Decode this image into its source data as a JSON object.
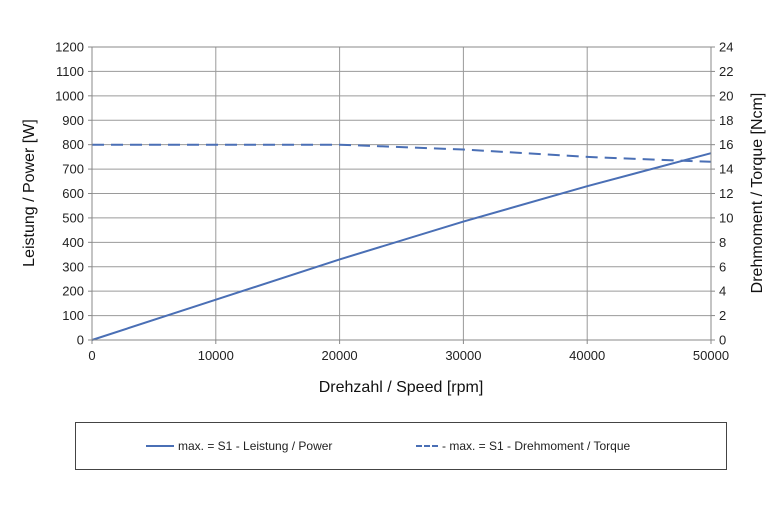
{
  "chart_data": {
    "type": "line",
    "xlabel": "Drehzahl / Speed [rpm]",
    "ylabel_left": "Leistung / Power [W]",
    "ylabel_right": "Drehmoment / Torque [Ncm]",
    "xlim": [
      0,
      50000
    ],
    "ylim_left": [
      0,
      1200
    ],
    "ylim_right": [
      0,
      24
    ],
    "x_ticks": [
      0,
      10000,
      20000,
      30000,
      40000,
      50000
    ],
    "y_left_ticks": [
      0,
      100,
      200,
      300,
      400,
      500,
      600,
      700,
      800,
      900,
      1000,
      1100,
      1200
    ],
    "y_right_ticks": [
      0,
      2,
      4,
      6,
      8,
      10,
      12,
      14,
      16,
      18,
      20,
      22,
      24
    ],
    "grid": true,
    "legend_placement": "bottom",
    "color": "#4a6fb5",
    "series": [
      {
        "name": "max. = S1 - Leistung / Power",
        "axis": "left",
        "style": "solid",
        "x": [
          0,
          10000,
          20000,
          30000,
          40000,
          50000
        ],
        "y": [
          0,
          165,
          330,
          485,
          630,
          765
        ]
      },
      {
        "name": "- max. = S1 - Drehmoment  / Torque",
        "axis": "right",
        "style": "dashed",
        "x": [
          0,
          10000,
          20000,
          30000,
          40000,
          50000
        ],
        "y": [
          16,
          16,
          16,
          15.6,
          15,
          14.6
        ]
      }
    ]
  }
}
